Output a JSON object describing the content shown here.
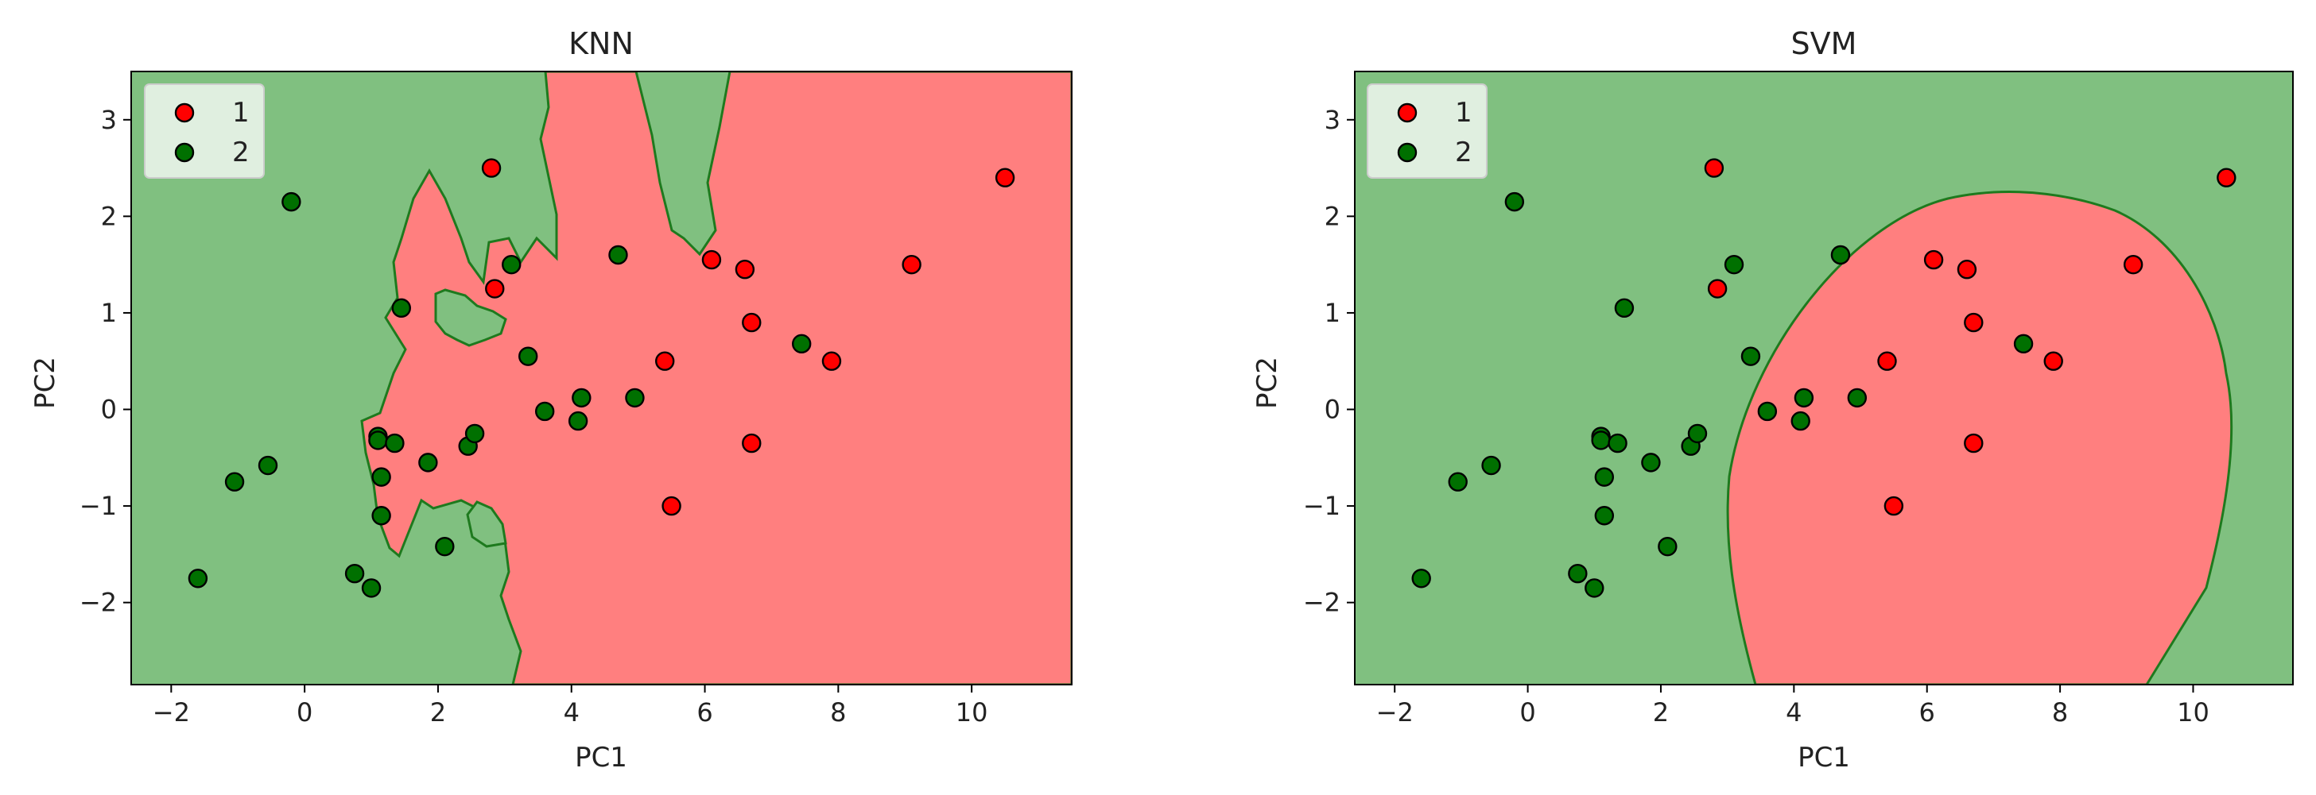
{
  "colors": {
    "class1": "#ff0000",
    "class2": "#007000",
    "region1": "#ff7f7f",
    "region2": "#80c080",
    "boundary": "#1e7a1e",
    "legend_bg": "#e8f3e8"
  },
  "chart_data": [
    {
      "type": "scatter",
      "title": "KNN",
      "xlabel": "PC1",
      "ylabel": "PC2",
      "xlim": [
        -2.6,
        11.5
      ],
      "ylim": [
        -2.85,
        3.5
      ],
      "xticks": [
        -2,
        0,
        2,
        4,
        6,
        8,
        10
      ],
      "xtick_labels": [
        "−2",
        "0",
        "2",
        "4",
        "6",
        "8",
        "10"
      ],
      "yticks": [
        -2,
        -1,
        0,
        1,
        2,
        3
      ],
      "ytick_labels": [
        "−2",
        "−1",
        "0",
        "1",
        "2",
        "3"
      ],
      "grid": false,
      "legend_position": "top-left",
      "background": "decision regions",
      "series": [
        {
          "name": "1",
          "x": [
            2.8,
            2.85,
            5.4,
            5.5,
            6.1,
            6.6,
            6.7,
            6.7,
            7.9,
            9.1,
            10.5
          ],
          "y": [
            2.5,
            1.25,
            0.5,
            -1.0,
            1.55,
            1.45,
            0.9,
            -0.35,
            0.5,
            1.5,
            2.4
          ]
        },
        {
          "name": "2",
          "x": [
            -1.6,
            -1.05,
            -0.55,
            -0.2,
            0.75,
            1.0,
            1.1,
            1.1,
            1.15,
            1.15,
            1.35,
            1.45,
            1.85,
            2.1,
            2.45,
            2.55,
            3.1,
            3.35,
            3.6,
            4.1,
            4.15,
            4.7,
            4.95,
            7.45
          ],
          "y": [
            -1.75,
            -0.75,
            -0.58,
            2.15,
            -1.7,
            -1.85,
            -0.28,
            -0.32,
            -0.7,
            -1.1,
            -0.35,
            1.05,
            -0.55,
            -1.42,
            -0.38,
            -0.25,
            1.5,
            0.55,
            -0.02,
            -0.12,
            0.12,
            1.6,
            0.12,
            0.68
          ]
        }
      ]
    },
    {
      "type": "scatter",
      "title": "SVM",
      "xlabel": "PC1",
      "ylabel": "PC2",
      "xlim": [
        -2.6,
        11.5
      ],
      "ylim": [
        -2.85,
        3.5
      ],
      "xticks": [
        -2,
        0,
        2,
        4,
        6,
        8,
        10
      ],
      "xtick_labels": [
        "−2",
        "0",
        "2",
        "4",
        "6",
        "8",
        "10"
      ],
      "yticks": [
        -2,
        -1,
        0,
        1,
        2,
        3
      ],
      "ytick_labels": [
        "−2",
        "−1",
        "0",
        "1",
        "2",
        "3"
      ],
      "grid": false,
      "legend_position": "top-left",
      "background": "decision regions",
      "series": [
        {
          "name": "1",
          "x": [
            2.8,
            2.85,
            5.4,
            5.5,
            6.1,
            6.6,
            6.7,
            6.7,
            7.9,
            9.1,
            10.5
          ],
          "y": [
            2.5,
            1.25,
            0.5,
            -1.0,
            1.55,
            1.45,
            0.9,
            -0.35,
            0.5,
            1.5,
            2.4
          ]
        },
        {
          "name": "2",
          "x": [
            -1.6,
            -1.05,
            -0.55,
            -0.2,
            0.75,
            1.0,
            1.1,
            1.1,
            1.15,
            1.15,
            1.35,
            1.45,
            1.85,
            2.1,
            2.45,
            2.55,
            3.1,
            3.35,
            3.6,
            4.1,
            4.15,
            4.7,
            4.95,
            7.45
          ],
          "y": [
            -1.75,
            -0.75,
            -0.58,
            2.15,
            -1.7,
            -1.85,
            -0.28,
            -0.32,
            -0.7,
            -1.1,
            -0.35,
            1.05,
            -0.55,
            -1.42,
            -0.38,
            -0.25,
            1.5,
            0.55,
            -0.02,
            -0.12,
            0.12,
            1.6,
            0.12,
            0.68
          ]
        }
      ]
    }
  ]
}
